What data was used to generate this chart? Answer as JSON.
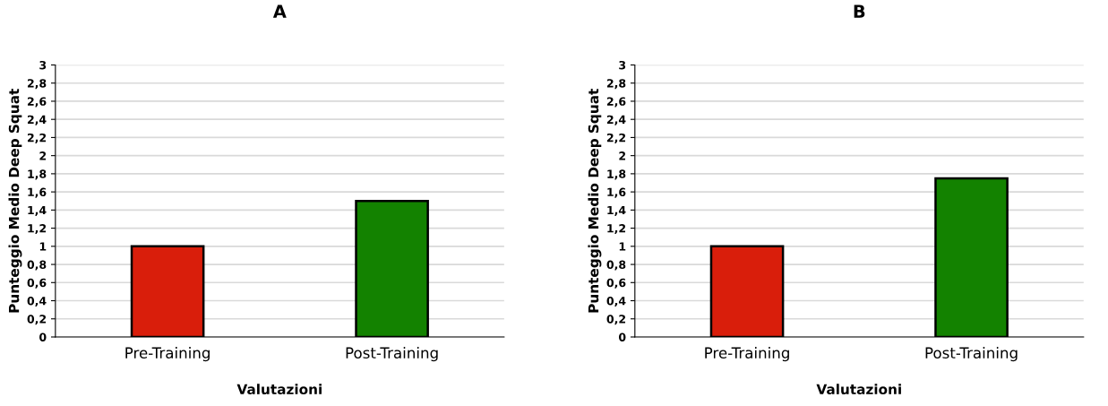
{
  "chart_data": [
    {
      "type": "bar",
      "title": "A",
      "xlabel": "Valutazioni",
      "ylabel": "Punteggio Medio Deep Squat",
      "categories": [
        "Pre-Training",
        "Post-Training"
      ],
      "values": [
        1,
        1.5
      ],
      "colors": [
        "#d91e0b",
        "#138200"
      ],
      "ylim": [
        0,
        3
      ],
      "yticks": [
        0,
        {
          "value": 0.2,
          "label": "0,2"
        },
        {
          "value": 0.4,
          "label": "0,4"
        },
        {
          "value": 0.6,
          "label": "0,6"
        },
        {
          "value": 0.8,
          "label": "0,8"
        },
        1,
        {
          "value": 1.2,
          "label": "1,2"
        },
        {
          "value": 1.4,
          "label": "1,4"
        },
        {
          "value": 1.6,
          "label": "1,6"
        },
        {
          "value": 1.8,
          "label": "1,8"
        },
        2,
        {
          "value": 2.2,
          "label": "2,2"
        },
        {
          "value": 2.4,
          "label": "2,4"
        },
        {
          "value": 2.6,
          "label": "2,6"
        },
        {
          "value": 2.8,
          "label": "2,8"
        },
        3
      ],
      "grid": "y"
    },
    {
      "type": "bar",
      "title": "B",
      "xlabel": "Valutazioni",
      "ylabel": "Punteggio Medio Deep Squat",
      "categories": [
        "Pre-Training",
        "Post-Training"
      ],
      "values": [
        1,
        1.75
      ],
      "colors": [
        "#d91e0b",
        "#138200"
      ],
      "ylim": [
        0,
        3
      ],
      "yticks": [
        0,
        {
          "value": 0.2,
          "label": "0,2"
        },
        {
          "value": 0.4,
          "label": "0,4"
        },
        {
          "value": 0.6,
          "label": "0,6"
        },
        {
          "value": 0.8,
          "label": "0,8"
        },
        1,
        {
          "value": 1.2,
          "label": "1,2"
        },
        {
          "value": 1.4,
          "label": "1,4"
        },
        {
          "value": 1.6,
          "label": "1,6"
        },
        {
          "value": 1.8,
          "label": "1,8"
        },
        2,
        {
          "value": 2.2,
          "label": "2,2"
        },
        {
          "value": 2.4,
          "label": "2,4"
        },
        {
          "value": 2.6,
          "label": "2,6"
        },
        {
          "value": 2.8,
          "label": "2,8"
        },
        3
      ],
      "grid": "y"
    }
  ]
}
